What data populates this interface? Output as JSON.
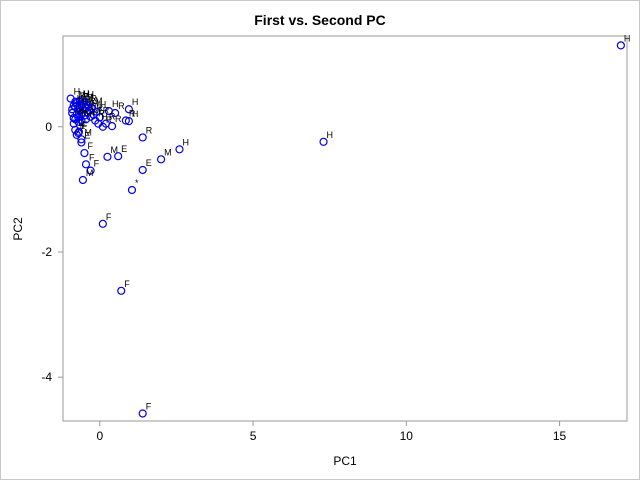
{
  "chart_data": {
    "type": "scatter",
    "title": "First vs. Second PC",
    "xlabel": "PC1",
    "ylabel": "PC2",
    "xlim": [
      -1.2,
      17.2
    ],
    "ylim": [
      -4.7,
      1.45
    ],
    "x_ticks": [
      0,
      5,
      10,
      15
    ],
    "y_ticks": [
      0,
      -2,
      -4
    ],
    "grid": false,
    "legend": "none",
    "marker_color": "#0000ee",
    "points": [
      {
        "x": 17.0,
        "y": 1.3,
        "label": "H"
      },
      {
        "x": 7.3,
        "y": -0.24,
        "label": "H"
      },
      {
        "x": 2.6,
        "y": -0.36,
        "label": "H"
      },
      {
        "x": 2.0,
        "y": -0.52,
        "label": "M"
      },
      {
        "x": 1.4,
        "y": -0.17,
        "label": "R"
      },
      {
        "x": 1.4,
        "y": -0.69,
        "label": "E"
      },
      {
        "x": 1.05,
        "y": -1.01,
        "label": "*"
      },
      {
        "x": 0.95,
        "y": 0.28,
        "label": "H"
      },
      {
        "x": 0.95,
        "y": 0.09,
        "label": "H"
      },
      {
        "x": 0.6,
        "y": -0.47,
        "label": "E"
      },
      {
        "x": 0.25,
        "y": -0.48,
        "label": "M"
      },
      {
        "x": 0.85,
        "y": 0.1,
        "label": "R"
      },
      {
        "x": 0.4,
        "y": 0.01,
        "label": "R"
      },
      {
        "x": 0.1,
        "y": 0.0,
        "label": "R"
      },
      {
        "x": 0.5,
        "y": 0.22,
        "label": "R"
      },
      {
        "x": 0.3,
        "y": 0.25,
        "label": "H"
      },
      {
        "x": 0.2,
        "y": 0.05,
        "label": "R"
      },
      {
        "x": -0.3,
        "y": -0.7,
        "label": "F"
      },
      {
        "x": -0.45,
        "y": -0.6,
        "label": "F"
      },
      {
        "x": -0.5,
        "y": -0.42,
        "label": "F"
      },
      {
        "x": -0.55,
        "y": -0.85,
        "label": "M"
      },
      {
        "x": 0.1,
        "y": -1.55,
        "label": "F"
      },
      {
        "x": 0.7,
        "y": -2.62,
        "label": "F"
      },
      {
        "x": 1.4,
        "y": -4.58,
        "label": "F"
      },
      {
        "x": -0.6,
        "y": -0.2,
        "label": "M"
      },
      {
        "x": -0.7,
        "y": -0.1,
        "label": "F"
      },
      {
        "x": -0.8,
        "y": -0.05,
        "label": "E"
      },
      {
        "x": -0.75,
        "y": -0.13,
        "label": "F"
      },
      {
        "x": -0.85,
        "y": 0.05,
        "label": "E"
      },
      {
        "x": -0.8,
        "y": 0.12,
        "label": "F"
      },
      {
        "x": -0.7,
        "y": 0.15,
        "label": "M"
      },
      {
        "x": -0.6,
        "y": 0.2,
        "label": "R"
      },
      {
        "x": -0.5,
        "y": 0.18,
        "label": "H"
      },
      {
        "x": -0.4,
        "y": 0.22,
        "label": "R"
      },
      {
        "x": -0.3,
        "y": 0.16,
        "label": "M"
      },
      {
        "x": -0.2,
        "y": 0.19,
        "label": "R"
      },
      {
        "x": -0.1,
        "y": 0.24,
        "label": "H"
      },
      {
        "x": 0.0,
        "y": 0.15,
        "label": "R"
      },
      {
        "x": -0.9,
        "y": 0.28,
        "label": "E"
      },
      {
        "x": -0.85,
        "y": 0.34,
        "label": "H"
      },
      {
        "x": -0.75,
        "y": 0.38,
        "label": "F"
      },
      {
        "x": -0.65,
        "y": 0.42,
        "label": "H"
      },
      {
        "x": -0.55,
        "y": 0.36,
        "label": "M"
      },
      {
        "x": -0.45,
        "y": 0.3,
        "label": "R"
      },
      {
        "x": -0.35,
        "y": 0.26,
        "label": "H"
      },
      {
        "x": -0.95,
        "y": 0.45,
        "label": "H"
      },
      {
        "x": -0.8,
        "y": 0.4,
        "label": "M"
      },
      {
        "x": -0.7,
        "y": 0.3,
        "label": "H"
      },
      {
        "x": -0.65,
        "y": 0.25,
        "label": "R"
      },
      {
        "x": -0.9,
        "y": 0.22,
        "label": "F"
      },
      {
        "x": -0.6,
        "y": 0.33,
        "label": "R"
      },
      {
        "x": -0.75,
        "y": 0.2,
        "label": "E"
      },
      {
        "x": -0.55,
        "y": 0.28,
        "label": "M"
      },
      {
        "x": -0.85,
        "y": 0.14,
        "label": "R"
      },
      {
        "x": -0.7,
        "y": 0.08,
        "label": "F"
      },
      {
        "x": -0.6,
        "y": 0.1,
        "label": "M"
      },
      {
        "x": -0.45,
        "y": 0.12,
        "label": "R"
      },
      {
        "x": -0.8,
        "y": 0.32,
        "label": "H"
      },
      {
        "x": -0.65,
        "y": 0.36,
        "label": "E"
      },
      {
        "x": -0.5,
        "y": 0.4,
        "label": "H"
      },
      {
        "x": -0.4,
        "y": 0.34,
        "label": "R"
      },
      {
        "x": -0.25,
        "y": 0.3,
        "label": "M"
      },
      {
        "x": -0.15,
        "y": 0.1,
        "label": "R"
      },
      {
        "x": -0.05,
        "y": 0.05,
        "label": "H"
      },
      {
        "x": -0.68,
        "y": -0.08,
        "label": "F"
      },
      {
        "x": -0.6,
        "y": -0.25,
        "label": "E"
      }
    ]
  }
}
